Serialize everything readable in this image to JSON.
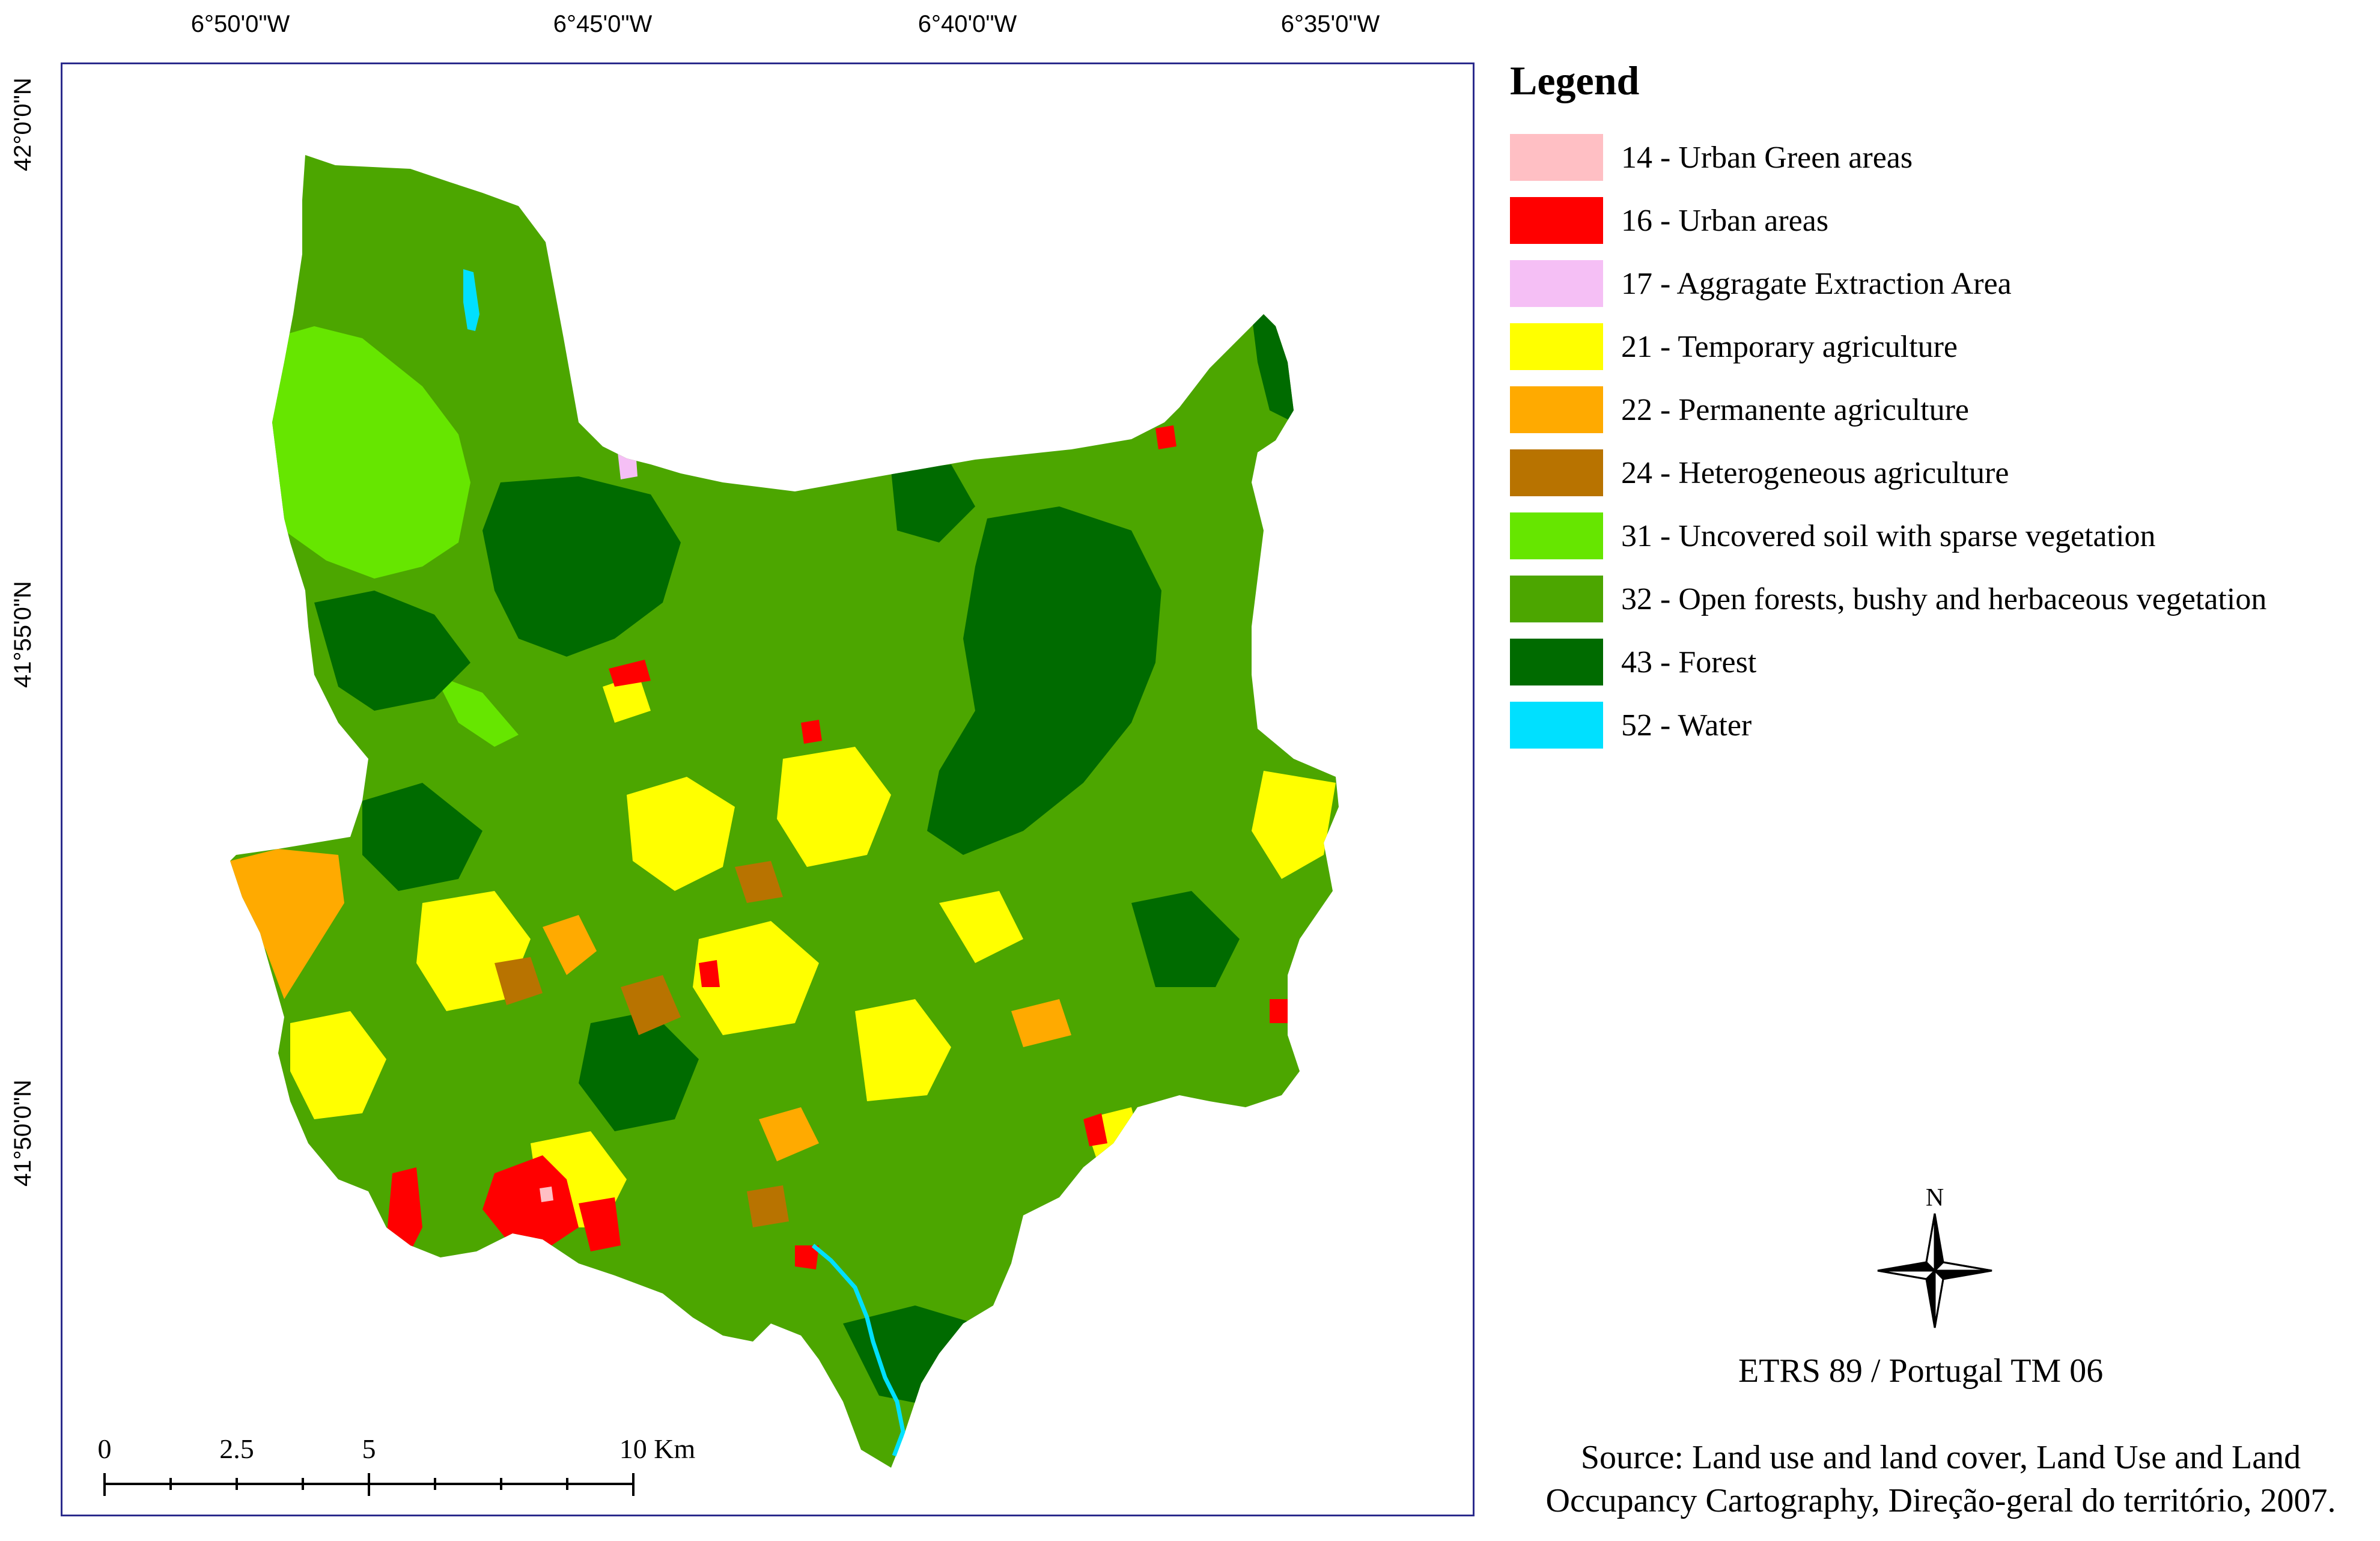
{
  "graticule": {
    "longitudes": [
      "6°50'0\"W",
      "6°45'0\"W",
      "6°40'0\"W",
      "6°35'0\"W"
    ],
    "latitudes": [
      "42°0'0\"N",
      "41°55'0\"N",
      "41°50'0\"N"
    ]
  },
  "legend": {
    "title": "Legend",
    "items": [
      {
        "label": "14 - Urban Green areas",
        "color": "#ffbfc4"
      },
      {
        "label": "16 - Urban areas",
        "color": "#ff0000"
      },
      {
        "label": "17 - Aggragate Extraction Area",
        "color": "#f5bff5"
      },
      {
        "label": "21 - Temporary agriculture",
        "color": "#ffff00"
      },
      {
        "label": "22 - Permanente agriculture",
        "color": "#ffaa00"
      },
      {
        "label": "24 - Heterogeneous agriculture",
        "color": "#b87300"
      },
      {
        "label": "31 - Uncovered soil with sparse vegetation",
        "color": "#66e600"
      },
      {
        "label": "32 - Open forests, bushy and herbaceous vegetation",
        "color": "#4ca600"
      },
      {
        "label": "43 - Forest",
        "color": "#006b00"
      },
      {
        "label": "52 - Water",
        "color": "#00e0ff"
      }
    ]
  },
  "north_arrow": {
    "label": "N"
  },
  "crs": "ETRS 89 / Portugal TM 06",
  "source": "Source: Land use and land cover, Land Use and Land Occupancy Cartography, Direção-geral do território, 2007.",
  "scale_bar": {
    "labels": [
      "0",
      "2.5",
      "5",
      "10 Km"
    ]
  }
}
